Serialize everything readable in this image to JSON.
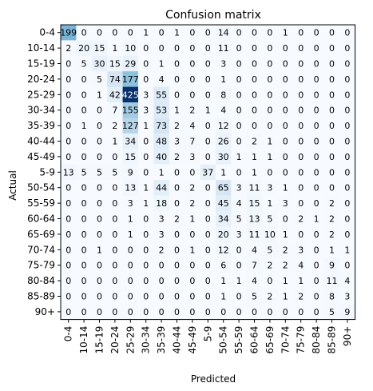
{
  "chart_data": {
    "type": "heatmap",
    "title": "Confusion matrix",
    "xlabel": "Predicted",
    "ylabel": "Actual",
    "labels": [
      "0-4",
      "10-14",
      "15-19",
      "20-24",
      "25-29",
      "30-34",
      "35-39",
      "40-44",
      "45-49",
      "5-9",
      "50-54",
      "55-59",
      "60-64",
      "65-69",
      "70-74",
      "75-79",
      "80-84",
      "85-89",
      "90+"
    ],
    "matrix": [
      [
        199,
        0,
        0,
        0,
        0,
        1,
        0,
        1,
        0,
        0,
        14,
        0,
        0,
        0,
        1,
        0,
        0,
        0,
        0
      ],
      [
        2,
        20,
        15,
        1,
        10,
        0,
        0,
        0,
        0,
        0,
        11,
        0,
        0,
        0,
        0,
        0,
        0,
        0,
        0
      ],
      [
        0,
        5,
        30,
        15,
        29,
        0,
        1,
        0,
        0,
        0,
        3,
        0,
        0,
        0,
        0,
        0,
        0,
        0,
        0
      ],
      [
        0,
        0,
        5,
        74,
        177,
        0,
        4,
        0,
        0,
        0,
        1,
        0,
        0,
        0,
        0,
        0,
        0,
        0,
        0
      ],
      [
        0,
        0,
        1,
        42,
        425,
        3,
        55,
        0,
        0,
        0,
        8,
        0,
        0,
        0,
        0,
        0,
        0,
        0,
        0
      ],
      [
        0,
        0,
        0,
        7,
        155,
        3,
        53,
        1,
        2,
        1,
        4,
        0,
        0,
        0,
        0,
        0,
        0,
        0,
        0
      ],
      [
        0,
        1,
        0,
        2,
        127,
        1,
        73,
        2,
        4,
        0,
        12,
        0,
        0,
        0,
        0,
        0,
        0,
        0,
        0
      ],
      [
        0,
        0,
        0,
        1,
        34,
        0,
        48,
        3,
        7,
        0,
        26,
        0,
        2,
        1,
        0,
        0,
        0,
        0,
        0
      ],
      [
        0,
        0,
        0,
        0,
        15,
        0,
        40,
        2,
        3,
        0,
        30,
        1,
        1,
        1,
        0,
        0,
        0,
        0,
        0
      ],
      [
        13,
        5,
        5,
        5,
        9,
        0,
        1,
        0,
        0,
        37,
        1,
        0,
        1,
        0,
        0,
        0,
        0,
        0,
        0
      ],
      [
        0,
        0,
        0,
        0,
        13,
        1,
        44,
        0,
        2,
        0,
        65,
        3,
        11,
        3,
        1,
        0,
        0,
        0,
        0
      ],
      [
        0,
        0,
        0,
        0,
        3,
        1,
        18,
        0,
        2,
        0,
        45,
        4,
        15,
        1,
        3,
        0,
        0,
        2,
        0
      ],
      [
        0,
        0,
        0,
        0,
        1,
        0,
        3,
        2,
        1,
        0,
        34,
        5,
        13,
        5,
        0,
        2,
        1,
        2,
        0
      ],
      [
        0,
        0,
        0,
        0,
        1,
        0,
        3,
        0,
        0,
        0,
        20,
        3,
        11,
        10,
        1,
        0,
        0,
        2,
        0
      ],
      [
        0,
        0,
        1,
        0,
        0,
        0,
        2,
        0,
        1,
        0,
        12,
        0,
        4,
        5,
        2,
        3,
        0,
        1,
        1
      ],
      [
        0,
        0,
        0,
        0,
        0,
        0,
        0,
        0,
        0,
        0,
        6,
        0,
        7,
        2,
        2,
        4,
        0,
        9,
        0
      ],
      [
        0,
        0,
        0,
        0,
        0,
        0,
        0,
        0,
        0,
        0,
        1,
        1,
        4,
        0,
        1,
        1,
        0,
        11,
        4
      ],
      [
        0,
        0,
        0,
        0,
        0,
        0,
        0,
        0,
        0,
        0,
        1,
        0,
        5,
        2,
        1,
        2,
        0,
        8,
        3
      ],
      [
        0,
        0,
        0,
        0,
        0,
        0,
        0,
        0,
        0,
        0,
        0,
        0,
        0,
        0,
        0,
        0,
        0,
        5,
        9
      ]
    ],
    "colormap": "Blues",
    "vmin": 0,
    "vmax": 425,
    "grid": false
  }
}
